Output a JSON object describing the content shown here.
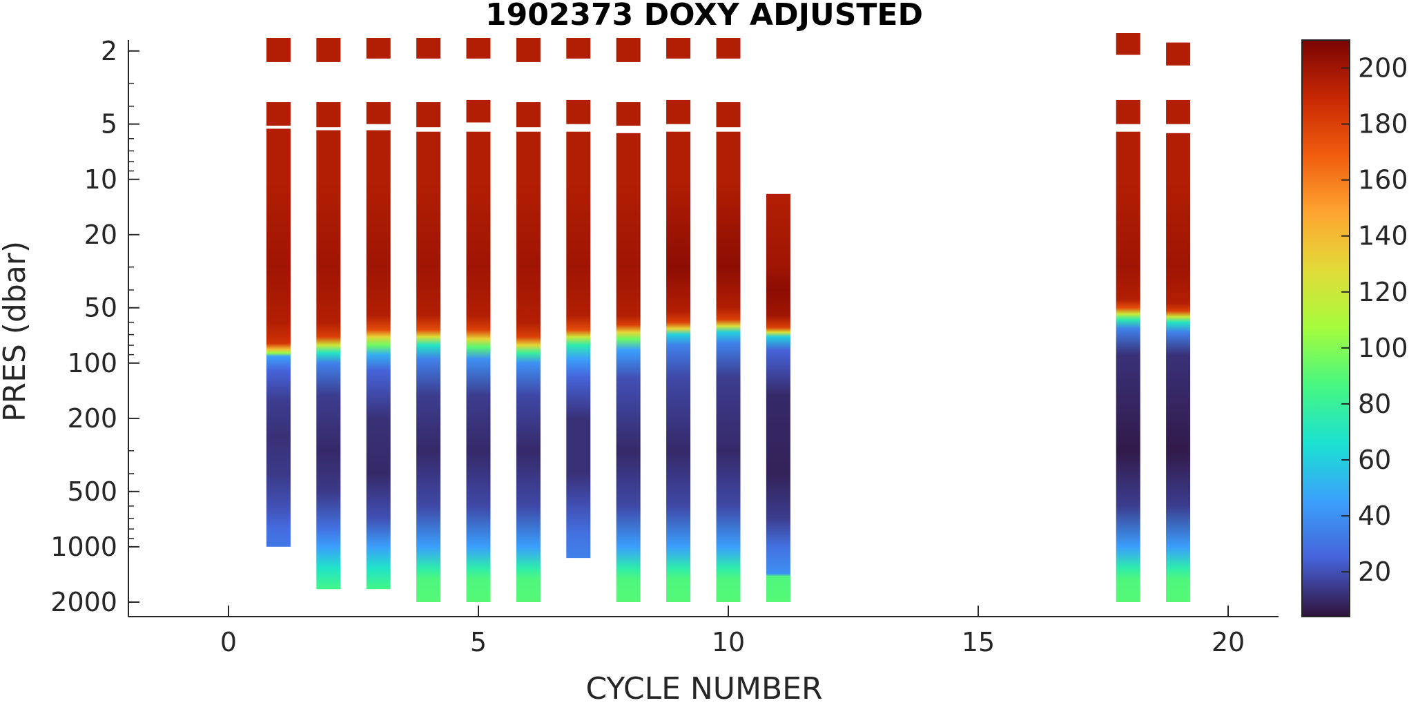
{
  "chart_data": {
    "type": "heatmap",
    "title": "1902373  DOXY ADJUSTED",
    "xlabel": "CYCLE NUMBER",
    "ylabel": "PRES (dbar)",
    "xlim": [
      -2,
      21
    ],
    "ylim": [
      1.6,
      2200
    ],
    "y_scale": "log",
    "y_reversed": true,
    "x_ticks": [
      0,
      5,
      10,
      15,
      20
    ],
    "y_ticks": [
      2,
      5,
      10,
      20,
      50,
      100,
      200,
      500,
      1000,
      2000
    ],
    "colorbar": {
      "colormap": "turbo",
      "range": [
        4,
        210
      ],
      "ticks": [
        20,
        40,
        60,
        80,
        100,
        120,
        140,
        160,
        180,
        200
      ]
    },
    "grid": false,
    "profiles": [
      {
        "cycle": 1,
        "top": 1.7,
        "bottom": 1000,
        "segments": [
          [
            1.7,
            2.3
          ],
          [
            3.8,
            5.1
          ],
          [
            5.3,
            7.6
          ],
          [
            7.6,
            85
          ],
          [
            85,
            1000
          ]
        ],
        "profile": [
          [
            1.7,
            195
          ],
          [
            10,
            195
          ],
          [
            30,
            200
          ],
          [
            60,
            195
          ],
          [
            78,
            185
          ],
          [
            84,
            140
          ],
          [
            88,
            105
          ],
          [
            92,
            45
          ],
          [
            110,
            25
          ],
          [
            160,
            15
          ],
          [
            250,
            12
          ],
          [
            400,
            14
          ],
          [
            600,
            20
          ],
          [
            800,
            28
          ],
          [
            1000,
            32
          ]
        ]
      },
      {
        "cycle": 2,
        "top": 1.7,
        "bottom": 1700,
        "segments": [
          [
            1.7,
            2.3
          ],
          [
            3.8,
            5.2
          ],
          [
            5.4,
            1700
          ]
        ],
        "profile": [
          [
            1.7,
            195
          ],
          [
            10,
            195
          ],
          [
            30,
            200
          ],
          [
            60,
            195
          ],
          [
            72,
            180
          ],
          [
            80,
            120
          ],
          [
            88,
            70
          ],
          [
            100,
            35
          ],
          [
            150,
            15
          ],
          [
            300,
            10
          ],
          [
            500,
            14
          ],
          [
            800,
            30
          ],
          [
            1000,
            45
          ],
          [
            1300,
            68
          ],
          [
            1700,
            85
          ]
        ]
      },
      {
        "cycle": 3,
        "top": 1.7,
        "bottom": 1700,
        "segments": [
          [
            1.7,
            2.2
          ],
          [
            3.8,
            5.0
          ],
          [
            5.4,
            7.6
          ],
          [
            7.6,
            1700
          ]
        ],
        "profile": [
          [
            1.7,
            195
          ],
          [
            10,
            195
          ],
          [
            30,
            200
          ],
          [
            55,
            195
          ],
          [
            66,
            175
          ],
          [
            72,
            130
          ],
          [
            80,
            95
          ],
          [
            90,
            50
          ],
          [
            110,
            25
          ],
          [
            200,
            12
          ],
          [
            400,
            10
          ],
          [
            700,
            20
          ],
          [
            1000,
            45
          ],
          [
            1300,
            68
          ],
          [
            1700,
            85
          ]
        ]
      },
      {
        "cycle": 4,
        "top": 1.7,
        "bottom": 2000,
        "segments": [
          [
            1.7,
            2.2
          ],
          [
            3.8,
            5.2
          ],
          [
            5.5,
            2000
          ]
        ],
        "profile": [
          [
            1.7,
            195
          ],
          [
            10,
            195
          ],
          [
            30,
            200
          ],
          [
            55,
            195
          ],
          [
            66,
            175
          ],
          [
            72,
            125
          ],
          [
            80,
            70
          ],
          [
            95,
            35
          ],
          [
            150,
            15
          ],
          [
            300,
            10
          ],
          [
            600,
            18
          ],
          [
            1000,
            45
          ],
          [
            1300,
            75
          ],
          [
            1500,
            88
          ],
          [
            2000,
            90
          ]
        ]
      },
      {
        "cycle": 5,
        "top": 1.7,
        "bottom": 2000,
        "segments": [
          [
            1.7,
            2.2
          ],
          [
            3.7,
            4.9
          ],
          [
            5.5,
            2000
          ]
        ],
        "profile": [
          [
            1.7,
            195
          ],
          [
            10,
            195
          ],
          [
            30,
            200
          ],
          [
            55,
            195
          ],
          [
            66,
            180
          ],
          [
            74,
            130
          ],
          [
            82,
            90
          ],
          [
            95,
            40
          ],
          [
            150,
            15
          ],
          [
            300,
            10
          ],
          [
            600,
            18
          ],
          [
            1000,
            45
          ],
          [
            1300,
            75
          ],
          [
            1500,
            88
          ],
          [
            2000,
            90
          ]
        ]
      },
      {
        "cycle": 6,
        "top": 1.7,
        "bottom": 2000,
        "segments": [
          [
            1.7,
            2.3
          ],
          [
            3.8,
            5.2
          ],
          [
            5.5,
            2000
          ]
        ],
        "profile": [
          [
            1.7,
            195
          ],
          [
            10,
            195
          ],
          [
            30,
            200
          ],
          [
            60,
            195
          ],
          [
            72,
            180
          ],
          [
            80,
            130
          ],
          [
            88,
            80
          ],
          [
            100,
            40
          ],
          [
            150,
            18
          ],
          [
            300,
            10
          ],
          [
            600,
            18
          ],
          [
            1000,
            45
          ],
          [
            1300,
            75
          ],
          [
            1500,
            88
          ],
          [
            2000,
            90
          ]
        ]
      },
      {
        "cycle": 7,
        "top": 1.7,
        "bottom": 1150,
        "segments": [
          [
            1.7,
            2.2
          ],
          [
            3.7,
            5.0
          ],
          [
            5.5,
            1150
          ]
        ],
        "profile": [
          [
            1.7,
            195
          ],
          [
            10,
            195
          ],
          [
            30,
            200
          ],
          [
            55,
            195
          ],
          [
            66,
            175
          ],
          [
            72,
            120
          ],
          [
            80,
            75
          ],
          [
            95,
            45
          ],
          [
            120,
            25
          ],
          [
            200,
            12
          ],
          [
            400,
            12
          ],
          [
            600,
            20
          ],
          [
            850,
            30
          ],
          [
            1150,
            35
          ]
        ]
      },
      {
        "cycle": 8,
        "top": 1.7,
        "bottom": 2000,
        "segments": [
          [
            1.7,
            2.3
          ],
          [
            3.8,
            5.1
          ],
          [
            5.6,
            2000
          ]
        ],
        "profile": [
          [
            1.7,
            195
          ],
          [
            10,
            195
          ],
          [
            30,
            200
          ],
          [
            55,
            195
          ],
          [
            62,
            180
          ],
          [
            68,
            130
          ],
          [
            74,
            95
          ],
          [
            85,
            45
          ],
          [
            120,
            20
          ],
          [
            300,
            10
          ],
          [
            600,
            18
          ],
          [
            1000,
            45
          ],
          [
            1300,
            75
          ],
          [
            1500,
            88
          ],
          [
            2000,
            90
          ]
        ]
      },
      {
        "cycle": 9,
        "top": 1.7,
        "bottom": 2000,
        "segments": [
          [
            1.7,
            2.2
          ],
          [
            3.7,
            5.0
          ],
          [
            5.5,
            2000
          ]
        ],
        "profile": [
          [
            1.7,
            195
          ],
          [
            10,
            195
          ],
          [
            30,
            205
          ],
          [
            52,
            195
          ],
          [
            60,
            180
          ],
          [
            65,
            130
          ],
          [
            70,
            60
          ],
          [
            80,
            35
          ],
          [
            120,
            18
          ],
          [
            300,
            10
          ],
          [
            600,
            18
          ],
          [
            1000,
            45
          ],
          [
            1300,
            75
          ],
          [
            1500,
            88
          ],
          [
            2000,
            90
          ]
        ]
      },
      {
        "cycle": 10,
        "top": 1.7,
        "bottom": 2000,
        "segments": [
          [
            1.7,
            2.2
          ],
          [
            3.8,
            5.2
          ],
          [
            5.5,
            2000
          ]
        ],
        "profile": [
          [
            1.7,
            195
          ],
          [
            10,
            195
          ],
          [
            30,
            205
          ],
          [
            50,
            195
          ],
          [
            58,
            180
          ],
          [
            63,
            125
          ],
          [
            68,
            60
          ],
          [
            78,
            35
          ],
          [
            120,
            15
          ],
          [
            300,
            10
          ],
          [
            600,
            18
          ],
          [
            1000,
            45
          ],
          [
            1300,
            75
          ],
          [
            1500,
            88
          ],
          [
            2000,
            90
          ]
        ]
      },
      {
        "cycle": 11,
        "top": 12,
        "bottom": 2000,
        "segments": [
          [
            12,
            1450
          ],
          [
            1450,
            2000
          ]
        ],
        "profile": [
          [
            12,
            195
          ],
          [
            30,
            200
          ],
          [
            40,
            205
          ],
          [
            55,
            200
          ],
          [
            64,
            180
          ],
          [
            68,
            125
          ],
          [
            72,
            60
          ],
          [
            85,
            25
          ],
          [
            150,
            10
          ],
          [
            400,
            8
          ],
          [
            700,
            15
          ],
          [
            1000,
            30
          ],
          [
            1400,
            40
          ],
          [
            1450,
            88
          ],
          [
            2000,
            90
          ]
        ]
      },
      {
        "cycle": 18,
        "top": 1.6,
        "bottom": 2000,
        "segments": [
          [
            1.6,
            2.1
          ],
          [
            3.7,
            5.0
          ],
          [
            5.5,
            2000
          ]
        ],
        "profile": [
          [
            1.6,
            195
          ],
          [
            10,
            195
          ],
          [
            30,
            200
          ],
          [
            45,
            195
          ],
          [
            50,
            175
          ],
          [
            54,
            120
          ],
          [
            58,
            75
          ],
          [
            65,
            35
          ],
          [
            90,
            12
          ],
          [
            300,
            6
          ],
          [
            600,
            15
          ],
          [
            1000,
            45
          ],
          [
            1300,
            75
          ],
          [
            1500,
            88
          ],
          [
            2000,
            90
          ]
        ]
      },
      {
        "cycle": 19,
        "top": 1.8,
        "bottom": 2000,
        "segments": [
          [
            1.8,
            2.4
          ],
          [
            3.7,
            5.0
          ],
          [
            5.6,
            2000
          ]
        ],
        "profile": [
          [
            1.8,
            195
          ],
          [
            10,
            195
          ],
          [
            30,
            200
          ],
          [
            47,
            195
          ],
          [
            52,
            180
          ],
          [
            56,
            120
          ],
          [
            60,
            70
          ],
          [
            68,
            35
          ],
          [
            90,
            12
          ],
          [
            300,
            6
          ],
          [
            600,
            15
          ],
          [
            1000,
            45
          ],
          [
            1300,
            75
          ],
          [
            1500,
            88
          ],
          [
            2000,
            90
          ]
        ]
      }
    ]
  }
}
